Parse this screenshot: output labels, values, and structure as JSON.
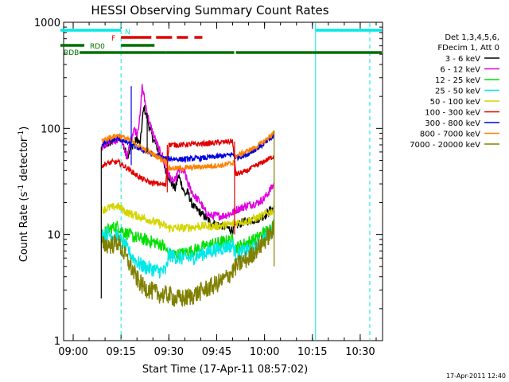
{
  "chart_data": {
    "type": "line",
    "title": "HESSI Observing Summary Count Rates",
    "xlabel": "Start Time (17-Apr-11 08:57:02)",
    "ylabel": "Count Rate (s",
    "ylabel_sup1": "-1",
    "ylabel_mid": " detector",
    "ylabel_sup2": "-1",
    "ylabel_end": ")",
    "y_scale": "log",
    "xlim_minutes": [
      0,
      100
    ],
    "ylim": [
      1,
      1000
    ],
    "x_ticks": [
      {
        "label": "09:00",
        "t": 3
      },
      {
        "label": "09:15",
        "t": 18
      },
      {
        "label": "09:30",
        "t": 33
      },
      {
        "label": "09:45",
        "t": 48
      },
      {
        "label": "10:00",
        "t": 63
      },
      {
        "label": "10:15",
        "t": 78
      },
      {
        "label": "10:30",
        "t": 93
      }
    ],
    "y_ticks": [
      {
        "label": "1",
        "v": 1
      },
      {
        "label": "10",
        "v": 10
      },
      {
        "label": "100",
        "v": 100
      },
      {
        "label": "1000",
        "v": 1000
      }
    ],
    "legend": {
      "position": "top-right outside",
      "header": [
        "Det 1,3,4,5,6,",
        "FDecim 1, Att 0"
      ],
      "entries": [
        {
          "label": "3 - 6 keV",
          "color": "#000000"
        },
        {
          "label": "6 - 12 keV",
          "color": "#e000e0"
        },
        {
          "label": "12 - 25 keV",
          "color": "#00e000"
        },
        {
          "label": "25 - 50 keV",
          "color": "#00e8e8"
        },
        {
          "label": "50 - 100 keV",
          "color": "#d4d400"
        },
        {
          "label": "100 - 300 keV",
          "color": "#e00000"
        },
        {
          "label": "300 - 800 keV",
          "color": "#0000e0"
        },
        {
          "label": "800 - 7000 keV",
          "color": "#ff8000"
        },
        {
          "label": "7000 - 20000 keV",
          "color": "#808000"
        }
      ]
    },
    "flags": [
      {
        "label": "N",
        "color": "#00e8e8",
        "segments": [
          [
            -1,
            18
          ],
          [
            79,
            100
          ]
        ]
      },
      {
        "label": "F",
        "color": "#e00000",
        "segments": [
          [
            18,
            27.5
          ],
          [
            29,
            34
          ],
          [
            35.5,
            39
          ],
          [
            41,
            43.5
          ]
        ]
      },
      {
        "label": "RD0",
        "color": "#007000",
        "segments": [
          [
            -1,
            6.5
          ],
          [
            18,
            28.5
          ]
        ]
      },
      {
        "label": "RDB",
        "color": "#007000",
        "segments": [
          [
            5,
            32
          ],
          [
            32,
            53.5
          ],
          [
            54,
            78
          ],
          [
            78,
            100
          ]
        ]
      }
    ],
    "vertical_lines": [
      {
        "t": 18,
        "style": "dashed",
        "color": "#00e8e8"
      },
      {
        "t": 79,
        "style": "solid",
        "color": "#00e8e8"
      },
      {
        "t": 96,
        "style": "dashed",
        "color": "#00e8e8"
      }
    ],
    "series": [
      {
        "name": "3 - 6 keV",
        "color": "#000000",
        "start": 12,
        "end": 66,
        "noise": 0.04,
        "points": [
          [
            12,
            67
          ],
          [
            14,
            72
          ],
          [
            17,
            80
          ],
          [
            18,
            82
          ],
          [
            19,
            65
          ],
          [
            20,
            55
          ],
          [
            21,
            65
          ],
          [
            22,
            72
          ],
          [
            23,
            80
          ],
          [
            24,
            70
          ],
          [
            24.7,
            120
          ],
          [
            25.2,
            160
          ],
          [
            26,
            130
          ],
          [
            27,
            100
          ],
          [
            28,
            80
          ],
          [
            29,
            70
          ],
          [
            30,
            58
          ],
          [
            31,
            52
          ],
          [
            32,
            40
          ],
          [
            33,
            35
          ],
          [
            34,
            30
          ],
          [
            35,
            27
          ],
          [
            36,
            36
          ],
          [
            37,
            30
          ],
          [
            38,
            24
          ],
          [
            39,
            25
          ],
          [
            40,
            20
          ],
          [
            41,
            18
          ],
          [
            42,
            17
          ],
          [
            43,
            16
          ],
          [
            45,
            14
          ],
          [
            46,
            13
          ],
          [
            50,
            12
          ],
          [
            53,
            11
          ],
          [
            54,
            12
          ],
          [
            56,
            13
          ],
          [
            58,
            13.5
          ],
          [
            61,
            14
          ],
          [
            63,
            15
          ],
          [
            65,
            17
          ],
          [
            66,
            18
          ]
        ]
      },
      {
        "name": "6 - 12 keV",
        "color": "#e000e0",
        "start": 12,
        "end": 66,
        "noise": 0.04,
        "points": [
          [
            12,
            67
          ],
          [
            14,
            72
          ],
          [
            17,
            80
          ],
          [
            18,
            80
          ],
          [
            19,
            62
          ],
          [
            20,
            55
          ],
          [
            21,
            75
          ],
          [
            22,
            100
          ],
          [
            23,
            90
          ],
          [
            24,
            130
          ],
          [
            24.6,
            250
          ],
          [
            25.2,
            200
          ],
          [
            26,
            150
          ],
          [
            27,
            110
          ],
          [
            28,
            90
          ],
          [
            29,
            75
          ],
          [
            30,
            62
          ],
          [
            31,
            55
          ],
          [
            32,
            42
          ],
          [
            33,
            37
          ],
          [
            34,
            32
          ],
          [
            35,
            32
          ],
          [
            36,
            40
          ],
          [
            37,
            40
          ],
          [
            38,
            38
          ],
          [
            39,
            30
          ],
          [
            40,
            26
          ],
          [
            41,
            23
          ],
          [
            43,
            20
          ],
          [
            44,
            17
          ],
          [
            46,
            15
          ],
          [
            50,
            15
          ],
          [
            53,
            16
          ],
          [
            54,
            17
          ],
          [
            56,
            18
          ],
          [
            58,
            19
          ],
          [
            61,
            20
          ],
          [
            63,
            22
          ],
          [
            65,
            27
          ],
          [
            66,
            30
          ]
        ]
      },
      {
        "name": "12 - 25 keV",
        "color": "#00e000",
        "start": 12,
        "end": 66,
        "noise": 0.06,
        "points": [
          [
            12,
            10
          ],
          [
            15,
            11.5
          ],
          [
            17,
            12
          ],
          [
            19,
            10.5
          ],
          [
            22,
            9.5
          ],
          [
            25,
            9
          ],
          [
            28,
            8.5
          ],
          [
            31,
            8
          ],
          [
            33,
            6.5
          ],
          [
            36,
            6.5
          ],
          [
            40,
            7
          ],
          [
            43,
            7.5
          ],
          [
            46,
            8
          ],
          [
            50,
            8.5
          ],
          [
            53,
            9
          ],
          [
            54,
            7.5
          ],
          [
            56,
            8
          ],
          [
            58,
            8.5
          ],
          [
            60,
            9
          ],
          [
            62,
            10
          ],
          [
            64,
            11
          ],
          [
            66,
            12.5
          ]
        ]
      },
      {
        "name": "25 - 50 keV",
        "color": "#00e8e8",
        "start": 12,
        "end": 66,
        "noise": 0.07,
        "points": [
          [
            12,
            10
          ],
          [
            15,
            10
          ],
          [
            17,
            9.5
          ],
          [
            19,
            8
          ],
          [
            21,
            6.5
          ],
          [
            23,
            5.5
          ],
          [
            25,
            5
          ],
          [
            27,
            4.8
          ],
          [
            30,
            4.5
          ],
          [
            32,
            4.5
          ],
          [
            33,
            6.5
          ],
          [
            36,
            6
          ],
          [
            40,
            6
          ],
          [
            43,
            6.5
          ],
          [
            46,
            7
          ],
          [
            50,
            7.5
          ],
          [
            53,
            8
          ],
          [
            54,
            6.5
          ],
          [
            57,
            7
          ],
          [
            60,
            7.5
          ],
          [
            62,
            8.5
          ],
          [
            64,
            10
          ],
          [
            66,
            11.5
          ]
        ]
      },
      {
        "name": "50 - 100 keV",
        "color": "#d4d400",
        "start": 12,
        "end": 66,
        "noise": 0.04,
        "points": [
          [
            12,
            17
          ],
          [
            15,
            18
          ],
          [
            17,
            18.5
          ],
          [
            20,
            16
          ],
          [
            23,
            15
          ],
          [
            26,
            14
          ],
          [
            29,
            13
          ],
          [
            32,
            12
          ],
          [
            33,
            11.5
          ],
          [
            38,
            11.5
          ],
          [
            43,
            12
          ],
          [
            48,
            12
          ],
          [
            53,
            12.5
          ],
          [
            54,
            13
          ],
          [
            58,
            13.5
          ],
          [
            61,
            14.5
          ],
          [
            64,
            16
          ],
          [
            66,
            17
          ]
        ]
      },
      {
        "name": "100 - 300 keV",
        "color": "#e00000",
        "start": 12,
        "end": 66,
        "noise": 0.025,
        "points": [
          [
            12,
            45
          ],
          [
            15,
            48
          ],
          [
            17,
            48
          ],
          [
            19,
            44
          ],
          [
            21,
            40
          ],
          [
            23,
            36
          ],
          [
            25,
            33
          ],
          [
            27,
            31
          ],
          [
            30,
            30
          ],
          [
            32,
            29
          ],
          [
            33,
            70
          ],
          [
            37,
            70
          ],
          [
            41,
            71
          ],
          [
            45,
            72
          ],
          [
            50,
            74
          ],
          [
            53,
            76
          ],
          [
            54,
            37
          ],
          [
            57,
            39
          ],
          [
            60,
            44
          ],
          [
            63,
            49
          ],
          [
            66,
            55
          ]
        ]
      },
      {
        "name": "300 - 800 keV",
        "color": "#0000e0",
        "start": 12,
        "end": 66,
        "noise": 0.025,
        "points": [
          [
            12,
            72
          ],
          [
            15,
            77
          ],
          [
            17,
            80
          ],
          [
            19,
            76
          ],
          [
            21,
            71
          ],
          [
            23,
            66
          ],
          [
            26,
            60
          ],
          [
            29,
            55
          ],
          [
            32,
            52
          ],
          [
            33,
            52
          ],
          [
            37,
            51
          ],
          [
            41,
            52
          ],
          [
            45,
            53
          ],
          [
            50,
            55
          ],
          [
            53,
            57
          ],
          [
            54,
            53
          ],
          [
            57,
            56
          ],
          [
            60,
            63
          ],
          [
            63,
            72
          ],
          [
            66,
            85
          ]
        ]
      },
      {
        "name": "800 - 7000 keV",
        "color": "#ff8000",
        "start": 12,
        "end": 66,
        "noise": 0.025,
        "points": [
          [
            12,
            77
          ],
          [
            15,
            83
          ],
          [
            17,
            86
          ],
          [
            19,
            82
          ],
          [
            21,
            76
          ],
          [
            23,
            70
          ],
          [
            26,
            62
          ],
          [
            29,
            55
          ],
          [
            32,
            49
          ],
          [
            33,
            42
          ],
          [
            37,
            42
          ],
          [
            41,
            43
          ],
          [
            45,
            44
          ],
          [
            50,
            45
          ],
          [
            53,
            47
          ],
          [
            54,
            55
          ],
          [
            57,
            60
          ],
          [
            60,
            66
          ],
          [
            63,
            76
          ],
          [
            66,
            92
          ]
        ]
      },
      {
        "name": "7000 - 20000 keV",
        "color": "#808000",
        "start": 12,
        "end": 66,
        "noise": 0.09,
        "points": [
          [
            12,
            8
          ],
          [
            15,
            8
          ],
          [
            17,
            8.5
          ],
          [
            19,
            6.5
          ],
          [
            21,
            5
          ],
          [
            23,
            3.8
          ],
          [
            25,
            3.2
          ],
          [
            27,
            3
          ],
          [
            29,
            2.8
          ],
          [
            31,
            2.7
          ],
          [
            33,
            2.7
          ],
          [
            35,
            2.5
          ],
          [
            38,
            2.5
          ],
          [
            41,
            2.7
          ],
          [
            44,
            3
          ],
          [
            47,
            3.3
          ],
          [
            50,
            3.7
          ],
          [
            53,
            4.5
          ],
          [
            54,
            5
          ],
          [
            56,
            5.5
          ],
          [
            58,
            6
          ],
          [
            60,
            7
          ],
          [
            62,
            8
          ],
          [
            64,
            9.5
          ],
          [
            66,
            11
          ]
        ]
      }
    ],
    "vertical_spikes": [
      {
        "t": 11.8,
        "from": 2.5,
        "to": 67,
        "color": "#000000"
      },
      {
        "t": 21.2,
        "from": 45,
        "to": 250,
        "color": "#0000e0"
      },
      {
        "t": 26.2,
        "from": 60,
        "to": 140,
        "color": "#000000"
      },
      {
        "t": 32.5,
        "from": 25,
        "to": 70,
        "color": "#e00000"
      },
      {
        "t": 53.6,
        "from": 10,
        "to": 75,
        "color": "#e00000"
      },
      {
        "t": 66,
        "from": 5,
        "to": 95,
        "color": "#808000"
      }
    ],
    "stamp": "17-Apr-2011 12:40"
  }
}
